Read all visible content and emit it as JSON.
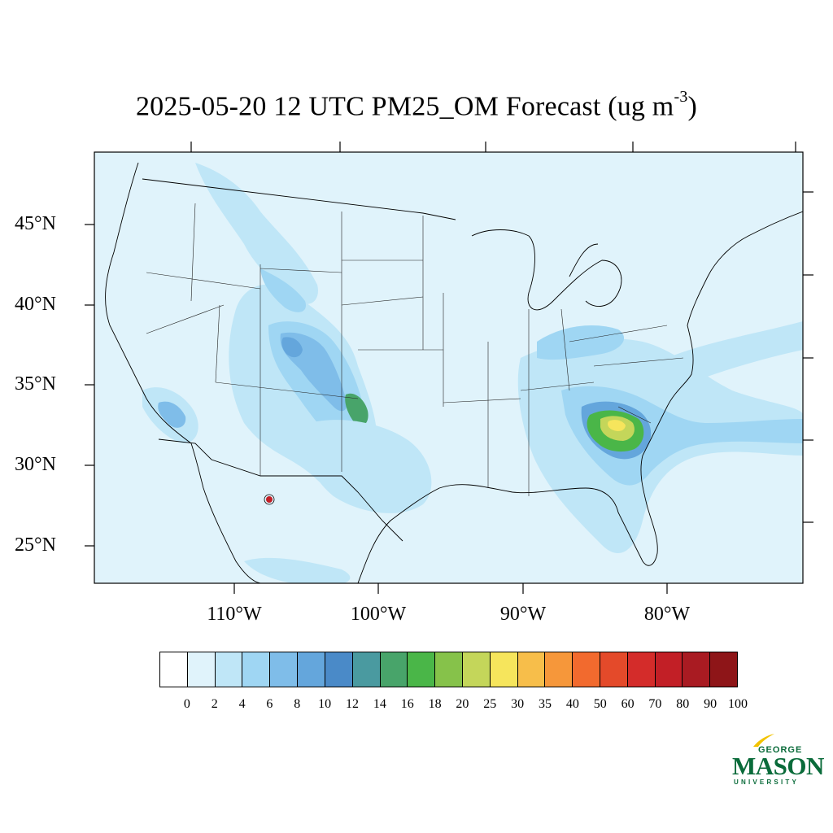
{
  "title": {
    "main": "2025-05-20 12 UTC PM25_OM Forecast (ug m",
    "superscript": "-3",
    "closing": ")"
  },
  "lat_labels": [
    "45°N",
    "40°N",
    "35°N",
    "30°N",
    "25°N"
  ],
  "lon_labels": [
    "110°W",
    "100°W",
    "90°W",
    "80°W"
  ],
  "colorbar": {
    "tick_labels": [
      "0",
      "2",
      "4",
      "6",
      "8",
      "10",
      "12",
      "14",
      "16",
      "18",
      "20",
      "25",
      "30",
      "35",
      "40",
      "50",
      "60",
      "70",
      "80",
      "90",
      "100"
    ],
    "colors": [
      "#ffffff",
      "#e0f3fb",
      "#bfe6f7",
      "#9fd6f3",
      "#7fbde9",
      "#64a6dc",
      "#4a8ac8",
      "#4a9aa0",
      "#48a46a",
      "#4ab648",
      "#86c24a",
      "#c4d65a",
      "#f6e55c",
      "#f7be4a",
      "#f6973a",
      "#f26a2e",
      "#e44a2a",
      "#d42c2a",
      "#c21f26",
      "#a91b22",
      "#8e1518"
    ]
  },
  "logo": {
    "top": "GEORGE",
    "main": "MASON",
    "bottom": "UNIVERSITY"
  }
}
